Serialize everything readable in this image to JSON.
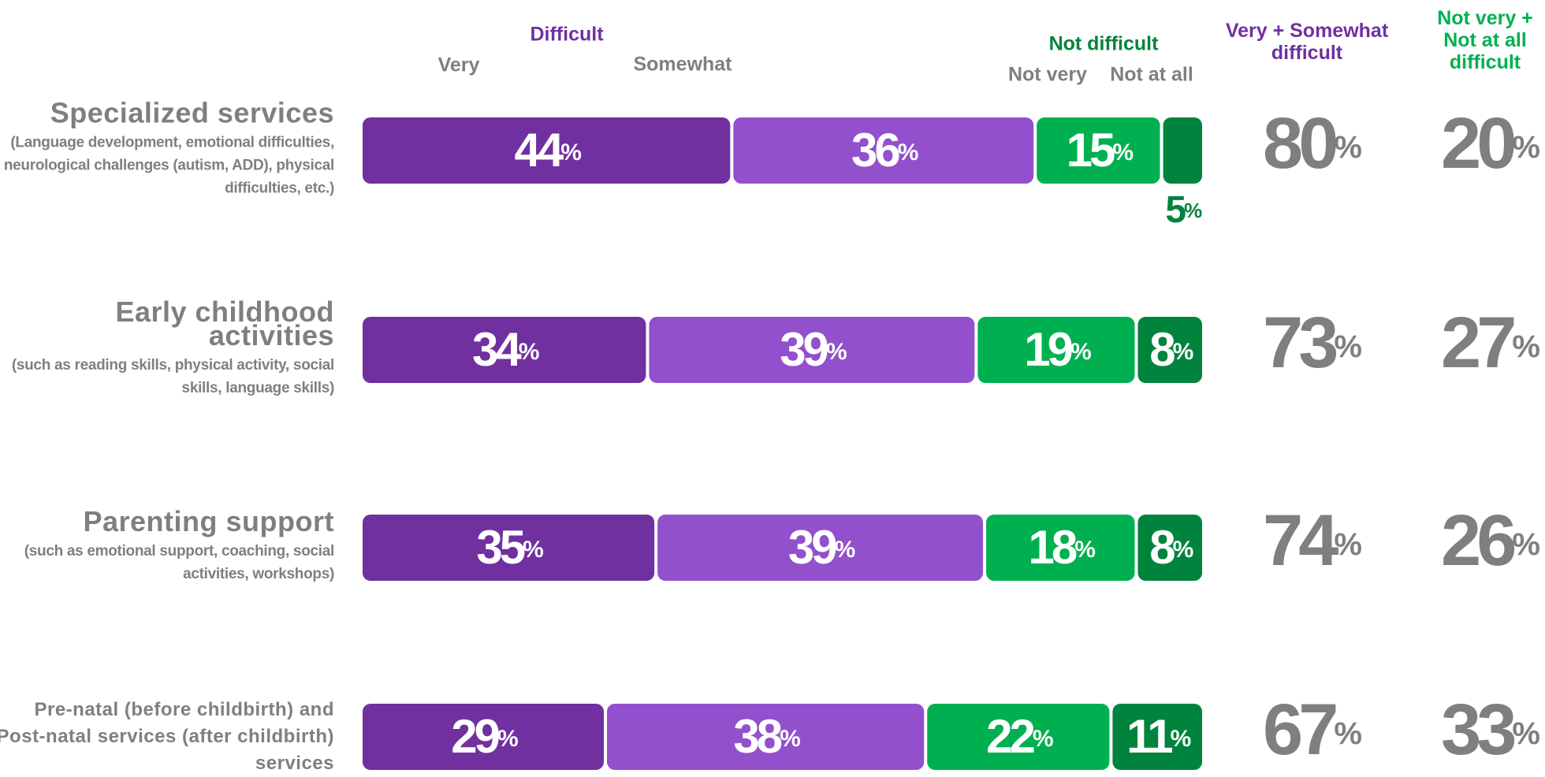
{
  "chart_data": {
    "type": "bar",
    "orientation": "horizontal",
    "stacked": true,
    "groups": [
      {
        "name": "Difficult",
        "color": "#7030a0"
      },
      {
        "name": "Not difficult",
        "color": "#00843d"
      }
    ],
    "categories": [
      "Specialized services",
      "Early childhood activities",
      "Parenting support",
      "Pre-natal (before childbirth) and Post-natal services (after childbirth) services"
    ],
    "category_notes": [
      "(Language development, emotional difficulties, neurological challenges (autism, ADD), physical difficulties, etc.)",
      "(such as reading skills, physical activity, social skills, language skills)",
      "(such as emotional support, coaching, social activities, workshops)",
      null
    ],
    "series": [
      {
        "name": "Very",
        "color": "#7030a0",
        "values": [
          44,
          34,
          35,
          29
        ],
        "value_labels": [
          "44%",
          "34%",
          "35%",
          "29%"
        ]
      },
      {
        "name": "Somewhat",
        "color": "#9350cc",
        "values": [
          36,
          39,
          39,
          38
        ],
        "value_labels": [
          "36%",
          "39%",
          "39%",
          "38%"
        ]
      },
      {
        "name": "Not very",
        "color": "#00b050",
        "values": [
          15,
          19,
          18,
          22
        ],
        "value_labels": [
          "15%",
          "19%",
          "18%",
          "22%"
        ]
      },
      {
        "name": "Not at all",
        "color": "#00843d",
        "values": [
          5,
          8,
          8,
          11
        ],
        "value_labels": [
          "5%",
          "8%",
          "8%",
          "11%"
        ]
      }
    ],
    "xlim": [
      0,
      100
    ],
    "totals": [
      {
        "name": "Very + Somewhat difficult",
        "color": "#7030a0",
        "values": [
          80,
          73,
          74,
          67
        ],
        "value_labels": [
          "80%",
          "73%",
          "74%",
          "67%"
        ]
      },
      {
        "name": "Not very + Not at all difficult",
        "color": "#00b050",
        "values": [
          20,
          27,
          26,
          33
        ],
        "value_labels": [
          "20%",
          "27%",
          "26%",
          "33%"
        ]
      }
    ]
  }
}
